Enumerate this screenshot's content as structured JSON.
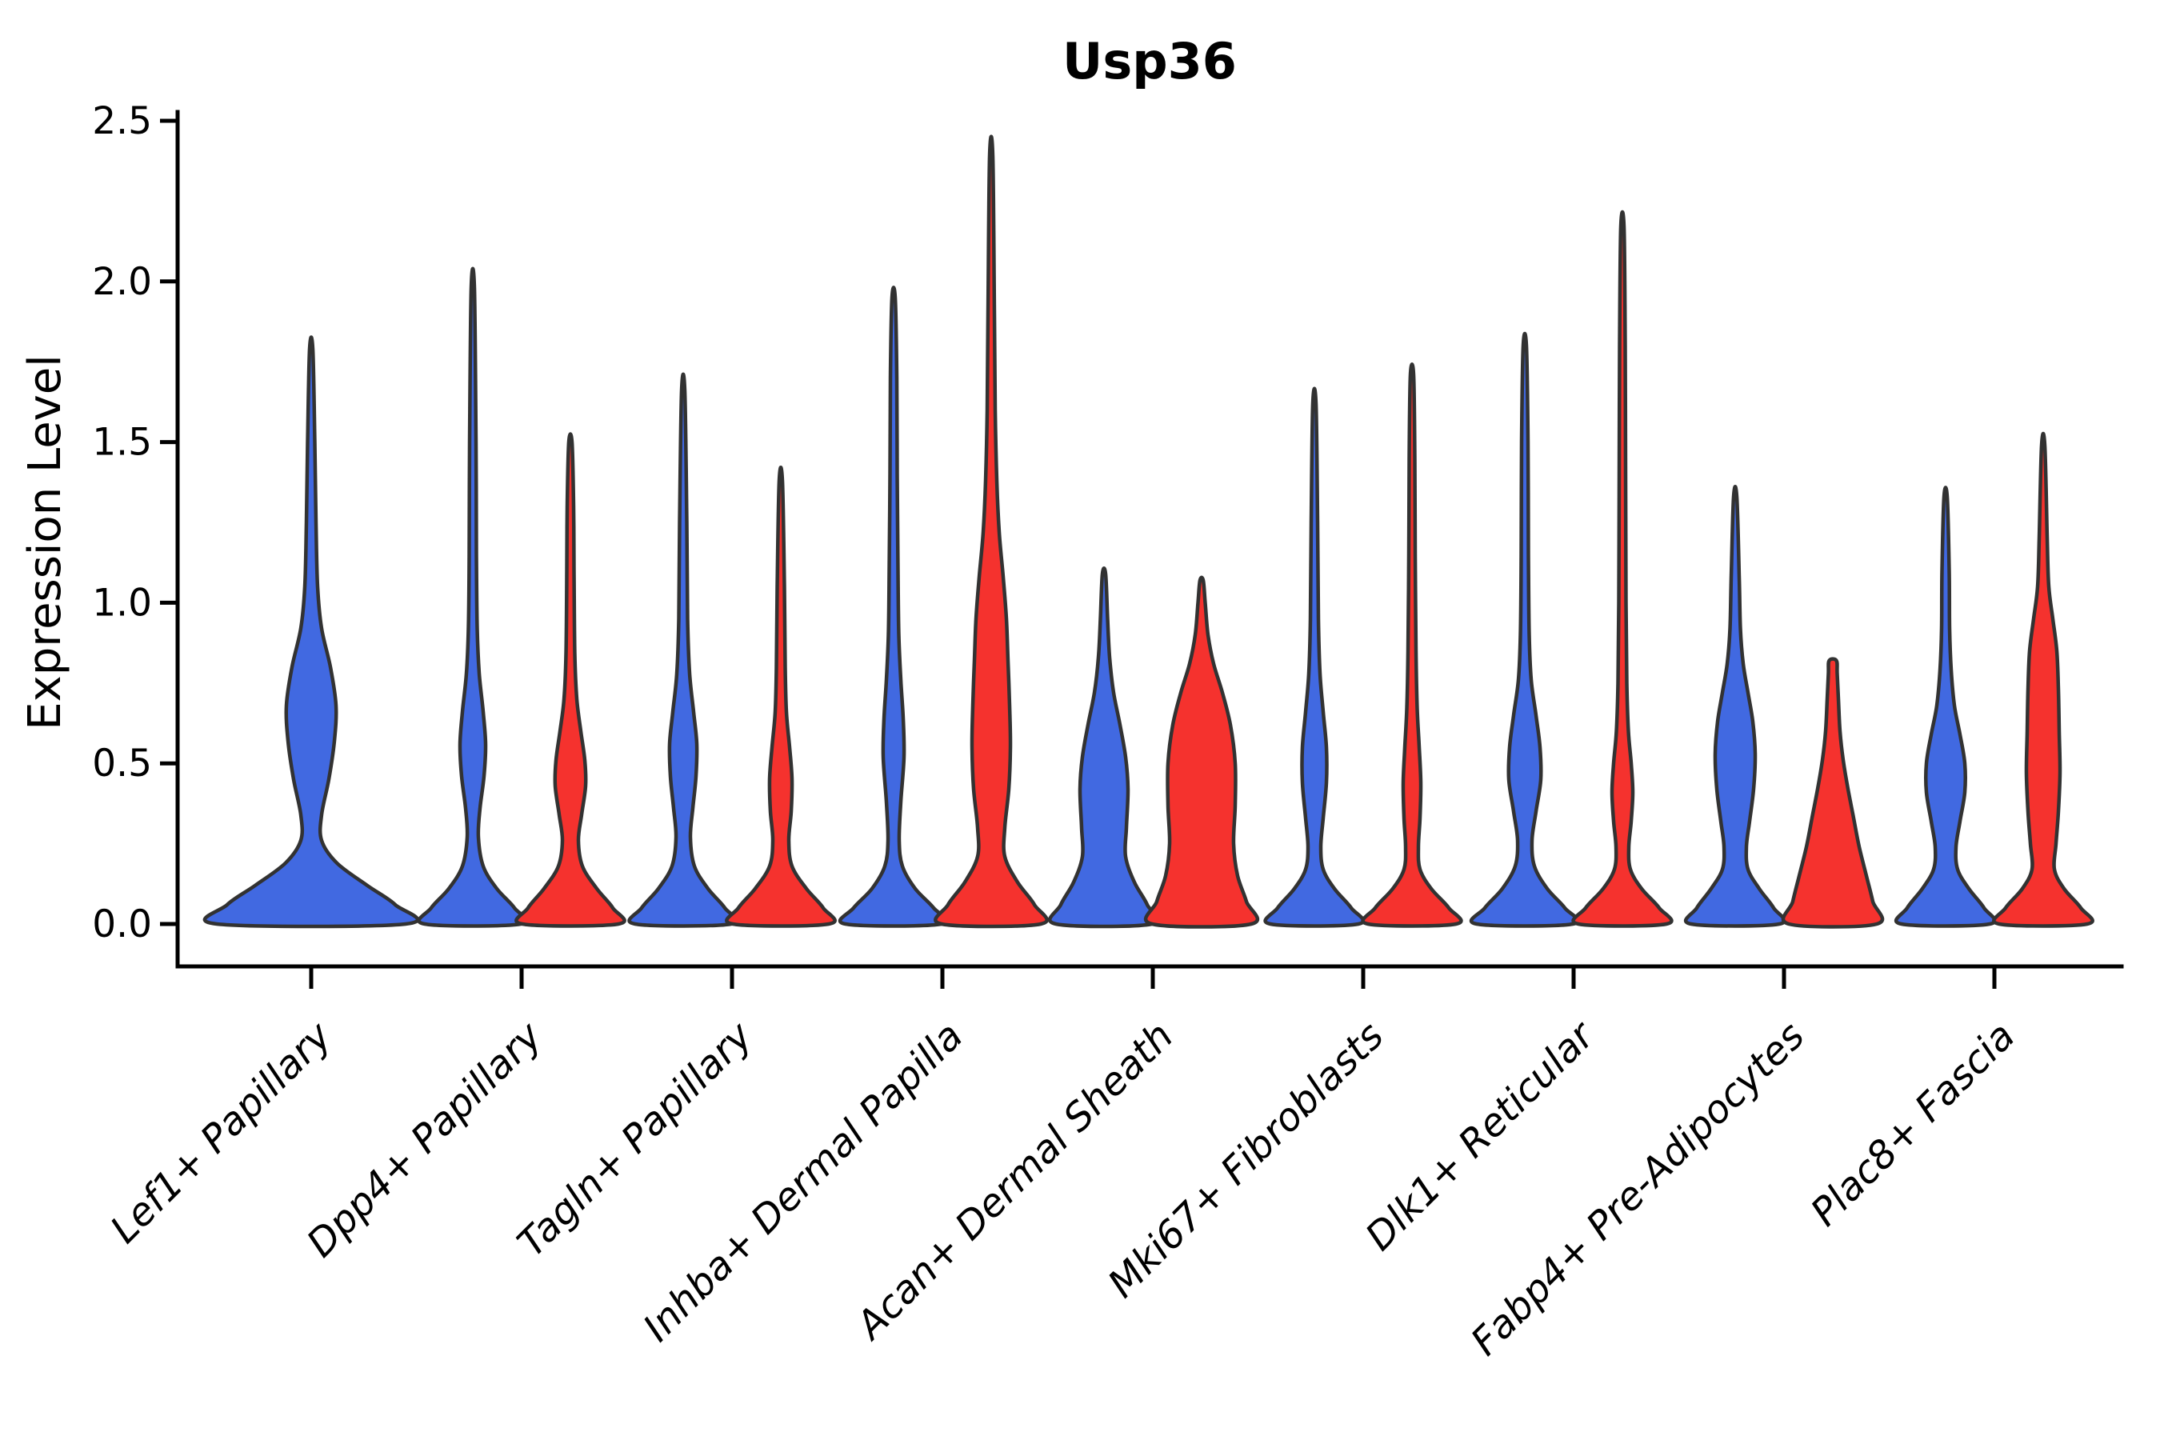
{
  "title": "Usp36",
  "y_axis": {
    "label": "Expression Level",
    "tick_labels": [
      "0.0",
      "0.5",
      "1.0",
      "1.5",
      "2.0",
      "2.5"
    ],
    "tick_values": [
      0.0,
      0.5,
      1.0,
      1.5,
      2.0,
      2.5
    ]
  },
  "x_axis": {
    "categories": [
      "Lef1+ Papillary",
      "Dpp4+ Papillary",
      "Tagln+ Papillary",
      "Inhba+ Dermal Papilla",
      "Acan+ Dermal Sheath",
      "Mki67+ Fibroblasts",
      "Dlk1+ Reticular",
      "Fabp4+ Pre-Adipocytes",
      "Plac8+ Fascia"
    ]
  },
  "colors": {
    "blue_fill": "#4169E1",
    "red_fill": "#F5322E",
    "violin_outline": "#323232",
    "axis": "#000000"
  },
  "chart_data": {
    "type": "violin",
    "title": "Usp36",
    "xlabel": "",
    "ylabel": "Expression Level",
    "ylim": [
      -0.19,
      2.53
    ],
    "yticks": [
      0.0,
      0.5,
      1.0,
      1.5,
      2.0,
      2.5
    ],
    "grid": false,
    "legend_position": "none",
    "categories": [
      "Lef1+ Papillary",
      "Dpp4+ Papillary",
      "Tagln+ Papillary",
      "Inhba+ Dermal Papilla",
      "Acan+ Dermal Sheath",
      "Mki67+ Fibroblasts",
      "Dlk1+ Reticular",
      "Fabp4+ Pre-Adipocytes",
      "Plac8+ Fascia"
    ],
    "series": [
      {
        "name": "blue",
        "color": "#4169E1",
        "max_expression": [
          1.79,
          1.98,
          1.66,
          1.95,
          1.09,
          1.62,
          1.8,
          1.33,
          1.33
        ]
      },
      {
        "name": "red",
        "color": "#F5322E",
        "max_expression": [
          null,
          1.5,
          1.38,
          2.39,
          1.07,
          1.71,
          2.17,
          0.82,
          1.49
        ]
      }
    ],
    "violins": [
      {
        "category": "Lef1+ Papillary",
        "category_index": 0,
        "series": "blue",
        "single": true,
        "max_expression": 1.79,
        "profile": [
          [
            0,
            118
          ],
          [
            0.06,
            105
          ],
          [
            0.12,
            70
          ],
          [
            0.19,
            32
          ],
          [
            0.26,
            13
          ],
          [
            0.34,
            13
          ],
          [
            0.45,
            22
          ],
          [
            0.57,
            29
          ],
          [
            0.68,
            31
          ],
          [
            0.8,
            24
          ],
          [
            0.92,
            13
          ],
          [
            1.05,
            8
          ],
          [
            1.25,
            6
          ],
          [
            1.5,
            4.5
          ],
          [
            1.79,
            2
          ]
        ]
      },
      {
        "category": "Dpp4+ Papillary",
        "category_index": 1,
        "series": "blue",
        "single": false,
        "max_expression": 1.98,
        "profile": [
          [
            0,
            60
          ],
          [
            0.05,
            52
          ],
          [
            0.11,
            30
          ],
          [
            0.18,
            13
          ],
          [
            0.27,
            7
          ],
          [
            0.36,
            9
          ],
          [
            0.46,
            14
          ],
          [
            0.56,
            16
          ],
          [
            0.66,
            13
          ],
          [
            0.78,
            8
          ],
          [
            0.92,
            5.5
          ],
          [
            1.15,
            4.5
          ],
          [
            1.5,
            4
          ],
          [
            1.98,
            2
          ]
        ]
      },
      {
        "category": "Dpp4+ Papillary",
        "category_index": 1,
        "series": "red",
        "single": false,
        "max_expression": 1.5,
        "profile": [
          [
            0,
            60
          ],
          [
            0.05,
            53
          ],
          [
            0.11,
            33
          ],
          [
            0.18,
            15
          ],
          [
            0.26,
            10
          ],
          [
            0.34,
            14
          ],
          [
            0.43,
            19
          ],
          [
            0.51,
            18
          ],
          [
            0.6,
            13
          ],
          [
            0.7,
            8
          ],
          [
            0.84,
            5.5
          ],
          [
            1.1,
            4.5
          ],
          [
            1.3,
            4
          ],
          [
            1.5,
            2
          ]
        ]
      },
      {
        "category": "Tagln+ Papillary",
        "category_index": 2,
        "series": "blue",
        "single": false,
        "max_expression": 1.66,
        "profile": [
          [
            0,
            60
          ],
          [
            0.05,
            52
          ],
          [
            0.11,
            31
          ],
          [
            0.18,
            14
          ],
          [
            0.27,
            9
          ],
          [
            0.36,
            12
          ],
          [
            0.46,
            16
          ],
          [
            0.56,
            17
          ],
          [
            0.66,
            13
          ],
          [
            0.78,
            8
          ],
          [
            0.95,
            5.5
          ],
          [
            1.25,
            4.5
          ],
          [
            1.66,
            2
          ]
        ]
      },
      {
        "category": "Tagln+ Papillary",
        "category_index": 2,
        "series": "red",
        "single": false,
        "max_expression": 1.38,
        "profile": [
          [
            0,
            60
          ],
          [
            0.05,
            53
          ],
          [
            0.11,
            32
          ],
          [
            0.18,
            14
          ],
          [
            0.26,
            10
          ],
          [
            0.35,
            13
          ],
          [
            0.45,
            14
          ],
          [
            0.55,
            11
          ],
          [
            0.66,
            7
          ],
          [
            0.8,
            5.5
          ],
          [
            1.05,
            4.5
          ],
          [
            1.38,
            2
          ]
        ]
      },
      {
        "category": "Inhba+ Dermal Papilla",
        "category_index": 3,
        "series": "blue",
        "single": false,
        "max_expression": 1.95,
        "profile": [
          [
            0,
            60
          ],
          [
            0.05,
            50
          ],
          [
            0.11,
            27
          ],
          [
            0.18,
            11
          ],
          [
            0.26,
            7
          ],
          [
            0.38,
            9
          ],
          [
            0.52,
            13
          ],
          [
            0.64,
            12
          ],
          [
            0.76,
            9
          ],
          [
            0.9,
            6.5
          ],
          [
            1.1,
            5.5
          ],
          [
            1.4,
            4.5
          ],
          [
            1.7,
            4
          ],
          [
            1.95,
            2
          ]
        ]
      },
      {
        "category": "Inhba+ Dermal Papilla",
        "category_index": 3,
        "series": "red",
        "single": false,
        "max_expression": 2.39,
        "profile": [
          [
            0,
            62
          ],
          [
            0.06,
            54
          ],
          [
            0.13,
            33
          ],
          [
            0.21,
            17
          ],
          [
            0.3,
            17
          ],
          [
            0.42,
            22
          ],
          [
            0.55,
            24
          ],
          [
            0.68,
            23
          ],
          [
            0.82,
            21
          ],
          [
            0.95,
            19
          ],
          [
            1.08,
            15
          ],
          [
            1.22,
            10
          ],
          [
            1.38,
            7
          ],
          [
            1.6,
            5
          ],
          [
            1.9,
            4
          ],
          [
            2.39,
            2
          ]
        ]
      },
      {
        "category": "Acan+ Dermal Sheath",
        "category_index": 4,
        "series": "blue",
        "single": false,
        "max_expression": 1.09,
        "profile": [
          [
            0,
            60
          ],
          [
            0.06,
            54
          ],
          [
            0.13,
            38
          ],
          [
            0.21,
            27
          ],
          [
            0.3,
            28
          ],
          [
            0.42,
            30
          ],
          [
            0.52,
            27
          ],
          [
            0.62,
            20
          ],
          [
            0.72,
            12
          ],
          [
            0.83,
            7
          ],
          [
            0.95,
            4.5
          ],
          [
            1.09,
            2
          ]
        ]
      },
      {
        "category": "Acan+ Dermal Sheath",
        "category_index": 4,
        "series": "red",
        "single": false,
        "max_expression": 1.07,
        "profile": [
          [
            0,
            62
          ],
          [
            0.07,
            56
          ],
          [
            0.15,
            45
          ],
          [
            0.25,
            40
          ],
          [
            0.37,
            42
          ],
          [
            0.5,
            42
          ],
          [
            0.62,
            36
          ],
          [
            0.72,
            26
          ],
          [
            0.81,
            15
          ],
          [
            0.9,
            8
          ],
          [
            1.0,
            4.5
          ],
          [
            1.07,
            2
          ]
        ]
      },
      {
        "category": "Mki67+ Fibroblasts",
        "category_index": 5,
        "series": "blue",
        "single": false,
        "max_expression": 1.62,
        "profile": [
          [
            0,
            55
          ],
          [
            0.05,
            46
          ],
          [
            0.11,
            25
          ],
          [
            0.17,
            11
          ],
          [
            0.24,
            8
          ],
          [
            0.33,
            11
          ],
          [
            0.44,
            15
          ],
          [
            0.55,
            15
          ],
          [
            0.66,
            11
          ],
          [
            0.78,
            7
          ],
          [
            0.95,
            5
          ],
          [
            1.25,
            4
          ],
          [
            1.62,
            2
          ]
        ]
      },
      {
        "category": "Mki67+ Fibroblasts",
        "category_index": 5,
        "series": "red",
        "single": false,
        "max_expression": 1.71,
        "profile": [
          [
            0,
            55
          ],
          [
            0.05,
            46
          ],
          [
            0.11,
            24
          ],
          [
            0.17,
            10
          ],
          [
            0.24,
            8
          ],
          [
            0.33,
            10
          ],
          [
            0.44,
            11
          ],
          [
            0.55,
            9
          ],
          [
            0.67,
            6.5
          ],
          [
            0.85,
            5
          ],
          [
            1.15,
            4
          ],
          [
            1.45,
            3.5
          ],
          [
            1.71,
            2
          ]
        ]
      },
      {
        "category": "Dlk1+ Reticular",
        "category_index": 6,
        "series": "blue",
        "single": false,
        "max_expression": 1.8,
        "profile": [
          [
            0,
            60
          ],
          [
            0.05,
            50
          ],
          [
            0.11,
            28
          ],
          [
            0.18,
            12
          ],
          [
            0.26,
            9
          ],
          [
            0.35,
            14
          ],
          [
            0.45,
            20
          ],
          [
            0.55,
            19
          ],
          [
            0.65,
            14
          ],
          [
            0.76,
            8
          ],
          [
            0.9,
            5.5
          ],
          [
            1.15,
            4.5
          ],
          [
            1.5,
            4
          ],
          [
            1.8,
            2
          ]
        ]
      },
      {
        "category": "Dlk1+ Reticular",
        "category_index": 6,
        "series": "red",
        "single": false,
        "max_expression": 2.17,
        "profile": [
          [
            0,
            55
          ],
          [
            0.05,
            46
          ],
          [
            0.11,
            24
          ],
          [
            0.17,
            10
          ],
          [
            0.24,
            8
          ],
          [
            0.32,
            11
          ],
          [
            0.41,
            13
          ],
          [
            0.5,
            11
          ],
          [
            0.6,
            7.5
          ],
          [
            0.75,
            5.5
          ],
          [
            1.0,
            4.5
          ],
          [
            1.4,
            4
          ],
          [
            1.8,
            3.5
          ],
          [
            2.17,
            2
          ]
        ]
      },
      {
        "category": "Fabp4+ Pre-Adipocytes",
        "category_index": 7,
        "series": "blue",
        "single": false,
        "max_expression": 1.33,
        "profile": [
          [
            0,
            55
          ],
          [
            0.05,
            48
          ],
          [
            0.11,
            30
          ],
          [
            0.17,
            16
          ],
          [
            0.24,
            14
          ],
          [
            0.32,
            18
          ],
          [
            0.42,
            23
          ],
          [
            0.53,
            25
          ],
          [
            0.63,
            22
          ],
          [
            0.72,
            16
          ],
          [
            0.81,
            10
          ],
          [
            0.92,
            6.5
          ],
          [
            1.08,
            5
          ],
          [
            1.33,
            2
          ]
        ]
      },
      {
        "category": "Fabp4+ Pre-Adipocytes",
        "category_index": 7,
        "series": "red",
        "single": false,
        "max_expression": 0.82,
        "blunt_tip": true,
        "profile": [
          [
            0,
            55
          ],
          [
            0.07,
            50
          ],
          [
            0.15,
            42
          ],
          [
            0.24,
            33
          ],
          [
            0.33,
            26
          ],
          [
            0.42,
            19
          ],
          [
            0.51,
            13
          ],
          [
            0.6,
            9
          ],
          [
            0.7,
            7
          ],
          [
            0.78,
            5.5
          ],
          [
            0.82,
            4.5
          ]
        ]
      },
      {
        "category": "Plac8+ Fascia",
        "category_index": 8,
        "series": "blue",
        "single": false,
        "max_expression": 1.33,
        "profile": [
          [
            0,
            55
          ],
          [
            0.05,
            48
          ],
          [
            0.11,
            29
          ],
          [
            0.17,
            15
          ],
          [
            0.24,
            13
          ],
          [
            0.32,
            18
          ],
          [
            0.41,
            24
          ],
          [
            0.5,
            24
          ],
          [
            0.59,
            18
          ],
          [
            0.68,
            11
          ],
          [
            0.79,
            7
          ],
          [
            0.92,
            5
          ],
          [
            1.1,
            4.5
          ],
          [
            1.33,
            2
          ]
        ]
      },
      {
        "category": "Plac8+ Fascia",
        "category_index": 8,
        "series": "red",
        "single": false,
        "max_expression": 1.49,
        "profile": [
          [
            0,
            55
          ],
          [
            0.05,
            47
          ],
          [
            0.11,
            26
          ],
          [
            0.17,
            14
          ],
          [
            0.25,
            16
          ],
          [
            0.35,
            19
          ],
          [
            0.47,
            21
          ],
          [
            0.6,
            20
          ],
          [
            0.73,
            19
          ],
          [
            0.85,
            17
          ],
          [
            0.95,
            12
          ],
          [
            1.05,
            7
          ],
          [
            1.2,
            5
          ],
          [
            1.49,
            2
          ]
        ]
      }
    ]
  }
}
